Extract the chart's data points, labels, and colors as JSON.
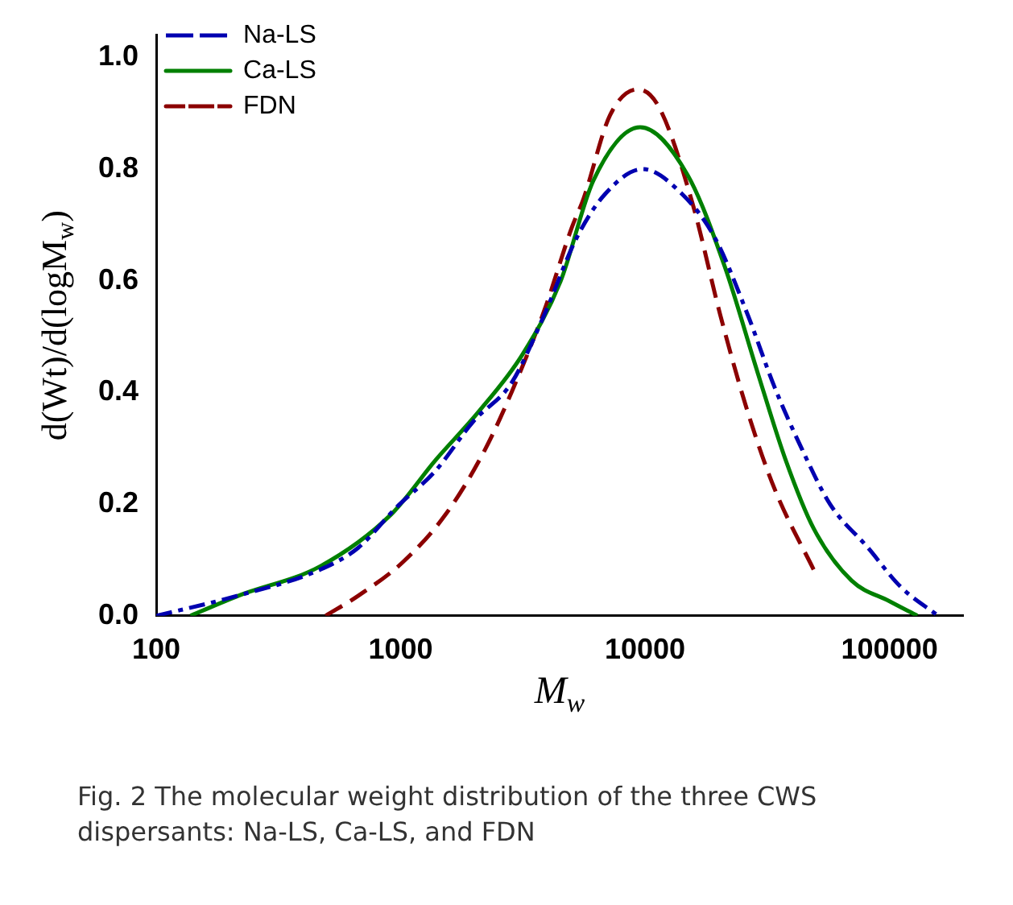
{
  "chart_data": {
    "type": "line",
    "xlabel": "M$_{w}$",
    "ylabel": "d(Wt)/d(logM$_{w}$)",
    "annotations": [
      "Fig. 2 The molecular weight distribution of the three CWS dispersants: Na-LS, Ca-LS, and FDN"
    ],
    "log": "x",
    "grid": false,
    "legend": "top left",
    "xlim": [
      100,
      200000
    ],
    "xticks": [
      100,
      1000,
      10000,
      100000
    ],
    "ylim": [
      0,
      1.04
    ],
    "yticks": [
      {
        "value": 0,
        "label": "0.0"
      },
      {
        "value": 0.2,
        "label": "0.2"
      },
      {
        "value": 0.4,
        "label": "0.4"
      },
      {
        "value": 0.6,
        "label": "0.6"
      },
      {
        "value": 0.8,
        "label": "0.8"
      },
      {
        "value": 1.0,
        "label": "1.0"
      }
    ],
    "series": [
      {
        "name": "Na-LS",
        "color": "#0000b0",
        "line_style": "dotted",
        "x": [
          100,
          195,
          470,
          671,
          955,
          1390,
          1990,
          2840,
          3870,
          5250,
          6850,
          9770,
          14200,
          19300,
          26300,
          33900,
          44000,
          57100,
          81600,
          111000,
          158000
        ],
        "values": [
          0,
          0.031,
          0.083,
          0.122,
          0.193,
          0.26,
          0.349,
          0.417,
          0.539,
          0.677,
          0.755,
          0.8,
          0.755,
          0.677,
          0.539,
          0.409,
          0.297,
          0.2,
          0.122,
          0.052,
          0
        ]
      },
      {
        "name": "Ca-LS",
        "color": "#008000",
        "line_style": "solid",
        "x": [
          138,
          217,
          470,
          916,
          1390,
          2080,
          3160,
          4510,
          6150,
          9550,
          14900,
          21200,
          28900,
          37600,
          49000,
          70000,
          100000,
          130000
        ],
        "values": [
          0,
          0.036,
          0.089,
          0.182,
          0.279,
          0.365,
          0.469,
          0.599,
          0.78,
          0.875,
          0.79,
          0.625,
          0.435,
          0.279,
          0.156,
          0.063,
          0.026,
          0
        ]
      },
      {
        "name": "FDN",
        "color": "#8b0000",
        "line_style": "dashed",
        "x": [
          493,
          671,
          1020,
          1530,
          2210,
          2840,
          3870,
          5010,
          5600,
          7180,
          9330,
          11400,
          15600,
          20300,
          26300,
          33900,
          49800
        ],
        "values": [
          0,
          0.036,
          0.096,
          0.182,
          0.297,
          0.4,
          0.547,
          0.695,
          0.747,
          0.896,
          0.943,
          0.911,
          0.74,
          0.539,
          0.365,
          0.227,
          0.076
        ]
      }
    ]
  }
}
